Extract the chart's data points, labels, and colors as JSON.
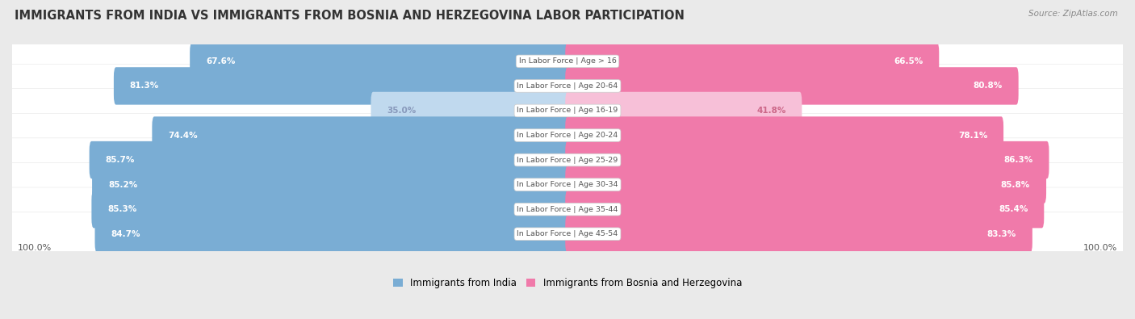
{
  "title": "IMMIGRANTS FROM INDIA VS IMMIGRANTS FROM BOSNIA AND HERZEGOVINA LABOR PARTICIPATION",
  "source": "Source: ZipAtlas.com",
  "categories": [
    "In Labor Force | Age > 16",
    "In Labor Force | Age 20-64",
    "In Labor Force | Age 16-19",
    "In Labor Force | Age 20-24",
    "In Labor Force | Age 25-29",
    "In Labor Force | Age 30-34",
    "In Labor Force | Age 35-44",
    "In Labor Force | Age 45-54"
  ],
  "india_values": [
    67.6,
    81.3,
    35.0,
    74.4,
    85.7,
    85.2,
    85.3,
    84.7
  ],
  "bosnia_values": [
    66.5,
    80.8,
    41.8,
    78.1,
    86.3,
    85.8,
    85.4,
    83.3
  ],
  "india_color": "#7aadd4",
  "india_color_light": "#c0d9ee",
  "bosnia_color": "#f07aaa",
  "bosnia_color_light": "#f7c0d8",
  "bg_color": "#eaeaea",
  "row_bg_color": "#f8f8f8",
  "max_val": 100.0,
  "legend_india": "Immigrants from India",
  "legend_bosnia": "Immigrants from Bosnia and Herzegovina",
  "title_fontsize": 10.5,
  "figsize": [
    14.06,
    3.95
  ]
}
